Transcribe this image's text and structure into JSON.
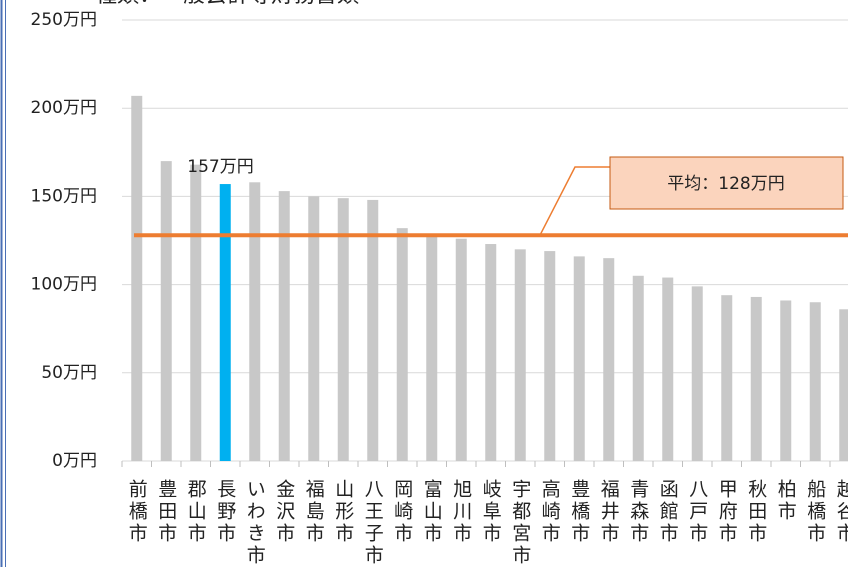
{
  "chart_data": {
    "type": "bar",
    "title": "種類：一般会計等財務書類",
    "categories": [
      "前橋市",
      "豊田市",
      "郡山市",
      "長野市",
      "いわき市",
      "金沢市",
      "福島市",
      "山形市",
      "八王子市",
      "岡崎市",
      "富山市",
      "旭川市",
      "岐阜市",
      "宇都宮市",
      "高崎市",
      "豊橋市",
      "福井市",
      "青森市",
      "函館市",
      "八戸市",
      "甲府市",
      "秋田市",
      "柏市",
      "船橋市",
      "越谷市"
    ],
    "values": [
      207,
      170,
      168,
      157,
      158,
      153,
      150,
      149,
      148,
      132,
      127,
      126,
      123,
      120,
      119,
      116,
      115,
      105,
      104,
      99,
      94,
      93,
      91,
      90,
      86
    ],
    "value_labels": [
      null,
      null,
      null,
      "157万円",
      null,
      null,
      null,
      null,
      null,
      null,
      null,
      null,
      null,
      null,
      null,
      null,
      null,
      null,
      null,
      null,
      null,
      null,
      null,
      null,
      null
    ],
    "colors": [
      "#c8c8c8",
      "#c8c8c8",
      "#c8c8c8",
      "#00b0f0",
      "#c8c8c8",
      "#c8c8c8",
      "#c8c8c8",
      "#c8c8c8",
      "#c8c8c8",
      "#c8c8c8",
      "#c8c8c8",
      "#c8c8c8",
      "#c8c8c8",
      "#c8c8c8",
      "#c8c8c8",
      "#c8c8c8",
      "#c8c8c8",
      "#c8c8c8",
      "#c8c8c8",
      "#c8c8c8",
      "#c8c8c8",
      "#c8c8c8",
      "#c8c8c8",
      "#c8c8c8",
      "#c8c8c8"
    ],
    "average": {
      "value": 128,
      "label": "平均：128万円",
      "color": "#ed7d31"
    },
    "ylim": [
      0,
      250
    ],
    "yticks": [
      {
        "value": 0,
        "label": "0万円"
      },
      {
        "value": 50,
        "label": "50万円"
      },
      {
        "value": 100,
        "label": "100万円"
      },
      {
        "value": 150,
        "label": "150万円"
      },
      {
        "value": 200,
        "label": "200万円"
      },
      {
        "value": 250,
        "label": "250万円"
      }
    ],
    "grid": true
  }
}
